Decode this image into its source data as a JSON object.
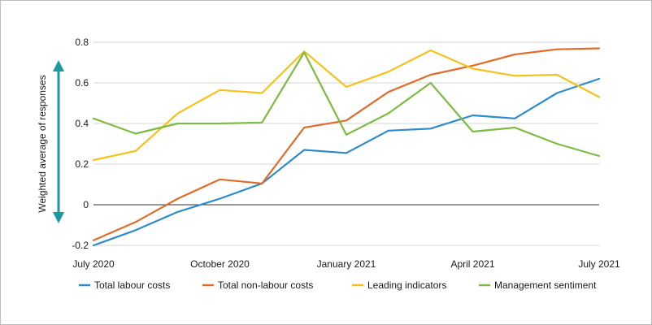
{
  "chart_data": {
    "type": "line",
    "title": "",
    "xlabel": "",
    "ylabel": "Weighted average of responses",
    "ylim": [
      -0.2,
      0.8
    ],
    "yticks": [
      -0.2,
      0,
      0.2,
      0.4,
      0.6,
      0.8
    ],
    "ytick_labels": [
      "-0.2",
      "0",
      "0.2",
      "0.4",
      "0.6",
      "0.8"
    ],
    "x": [
      "2020-07",
      "2020-08",
      "2020-09",
      "2020-10",
      "2020-11",
      "2020-12",
      "2021-01",
      "2021-02",
      "2021-03",
      "2021-04",
      "2021-05",
      "2021-06",
      "2021-07"
    ],
    "xtick_labels": [
      {
        "x": "2020-07",
        "label": "July 2020"
      },
      {
        "x": "2020-10",
        "label": "October 2020"
      },
      {
        "x": "2021-01",
        "label": "January 2021"
      },
      {
        "x": "2021-04",
        "label": "April 2021"
      },
      {
        "x": "2021-07",
        "label": "July 2021"
      }
    ],
    "grid": "horizontal",
    "legend_position": "bottom",
    "series": [
      {
        "name": "Total labour costs",
        "color": "#2e8bc9",
        "values": [
          -0.2,
          -0.125,
          -0.035,
          0.03,
          0.105,
          0.27,
          0.255,
          0.365,
          0.375,
          0.44,
          0.425,
          0.55,
          0.62
        ]
      },
      {
        "name": "Total non-labour costs",
        "color": "#e06c2a",
        "values": [
          -0.175,
          -0.085,
          0.03,
          0.125,
          0.105,
          0.38,
          0.415,
          0.555,
          0.64,
          0.685,
          0.74,
          0.765,
          0.77
        ]
      },
      {
        "name": "Leading indicators",
        "color": "#f5c21b",
        "values": [
          0.22,
          0.265,
          0.45,
          0.565,
          0.55,
          0.755,
          0.58,
          0.655,
          0.76,
          0.67,
          0.635,
          0.64,
          0.53
        ]
      },
      {
        "name": "Management sentiment",
        "color": "#7dbb42",
        "values": [
          0.425,
          0.35,
          0.4,
          0.4,
          0.405,
          0.75,
          0.345,
          0.45,
          0.6,
          0.36,
          0.38,
          0.3,
          0.24
        ]
      }
    ],
    "accent_arrow_color": "#1a9a9e"
  }
}
